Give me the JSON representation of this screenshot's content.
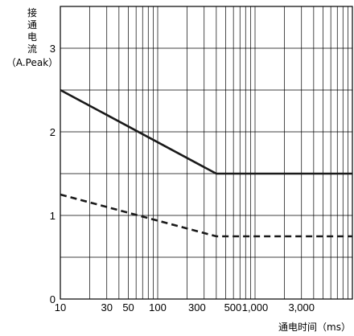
{
  "chart_data": {
    "type": "line",
    "ylabel_chars": [
      "接",
      "通",
      "电",
      "流"
    ],
    "ylabel_unit": "（A.Peak）",
    "xlabel": "通电时间（ms）",
    "x_scale": "log",
    "xlim": [
      10,
      10000
    ],
    "ylim": [
      0,
      3.5
    ],
    "grid": true,
    "x_ticks": [
      {
        "value": 10,
        "label": "10"
      },
      {
        "value": 30,
        "label": "30"
      },
      {
        "value": 50,
        "label": "50"
      },
      {
        "value": 100,
        "label": "100"
      },
      {
        "value": 300,
        "label": "300"
      },
      {
        "value": 500,
        "label": "500"
      },
      {
        "value": 1000,
        "label": "1,000"
      },
      {
        "value": 3000,
        "label": "3,000"
      }
    ],
    "y_ticks": [
      {
        "value": 0,
        "label": "0"
      },
      {
        "value": 1,
        "label": "1"
      },
      {
        "value": 2,
        "label": "2"
      },
      {
        "value": 3,
        "label": "3"
      }
    ],
    "series": [
      {
        "style": "solid",
        "color": "#1a1a1a",
        "x": [
          10,
          400,
          10000
        ],
        "y": [
          2.5,
          1.5,
          1.5
        ]
      },
      {
        "style": "dashed",
        "color": "#1a1a1a",
        "x": [
          10,
          400,
          10000
        ],
        "y": [
          1.25,
          0.75,
          0.75
        ]
      }
    ]
  }
}
